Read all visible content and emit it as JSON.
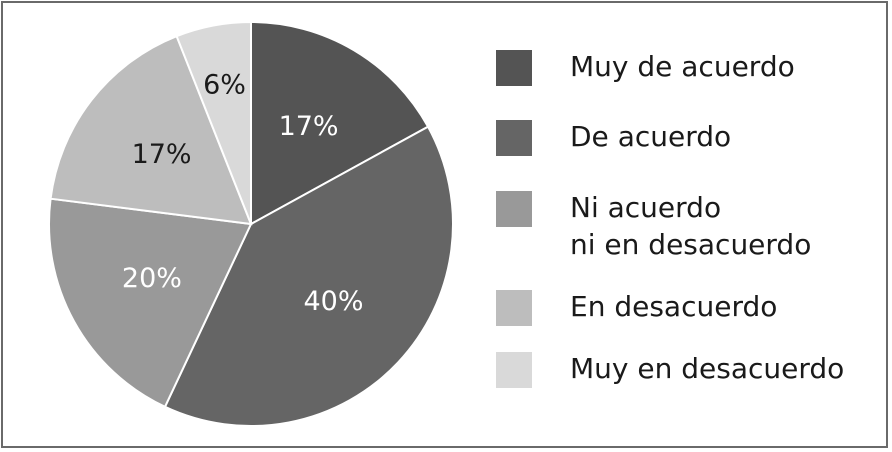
{
  "chart_data": {
    "type": "pie",
    "title": "",
    "slices": [
      {
        "label": "Muy de acuerdo",
        "value": 17,
        "display": "17%",
        "color": "#545454",
        "label_color": "#ffffff"
      },
      {
        "label": "De acuerdo",
        "value": 40,
        "display": "40%",
        "color": "#656565",
        "label_color": "#ffffff"
      },
      {
        "label": "Ni acuerdo\nni en desacuerdo",
        "value": 20,
        "display": "20%",
        "color": "#999999",
        "label_color": "#ffffff"
      },
      {
        "label": "En desacuerdo",
        "value": 17,
        "display": "17%",
        "color": "#bdbdbd",
        "label_color": "#1a1a1a"
      },
      {
        "label": "Muy en desacuerdo",
        "value": 6,
        "display": "6%",
        "color": "#d9d9d9",
        "label_color": "#1a1a1a"
      }
    ],
    "start_angle_deg": 0,
    "direction": "clockwise",
    "legend_position": "right"
  }
}
